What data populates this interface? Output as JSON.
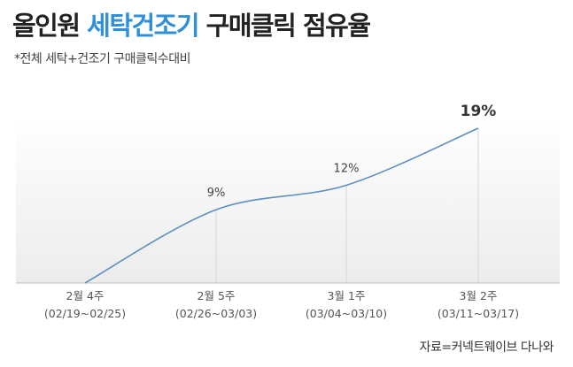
{
  "title": {
    "part1": "올인원 ",
    "part2": "세탁건조기",
    "part3": " 구매클릭 점유율"
  },
  "subtitle": "*전체 세탁+건조기 구매클릭수대비",
  "source": "자료=커넥트웨이브 다나와",
  "colors": {
    "accent": "#2f8fd8",
    "line": "#5b8fc4"
  },
  "chart_data": {
    "type": "line",
    "categories": [
      "2월 4주",
      "2월 5주",
      "3월 1주",
      "3월 2주"
    ],
    "category_ranges": [
      "(02/19~02/25)",
      "(02/26~03/03)",
      "(03/04~03/10)",
      "(03/11~03/17)"
    ],
    "series": [
      {
        "values": [
          null,
          9,
          12,
          19
        ],
        "labels": [
          "",
          "9%",
          "12%",
          "19%"
        ]
      }
    ],
    "grid": "vertical"
  }
}
